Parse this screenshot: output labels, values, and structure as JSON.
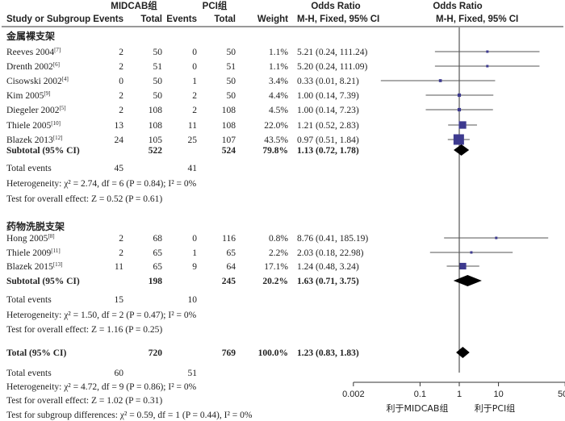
{
  "header": {
    "group1": "MIDCAB组",
    "group2": "PCI组",
    "or1": "Odds Ratio",
    "or2": "Odds Ratio",
    "study": "Study or Subgroup",
    "events1": "Events",
    "total1": "Total",
    "events2": "Events",
    "total2": "Total",
    "weight": "Weight",
    "method1": "M-H, Fixed, 95% CI",
    "method2": "M-H, Fixed, 95% CI"
  },
  "chart_data": {
    "type": "forest",
    "x_scale": "log",
    "xlim": [
      0.002,
      500
    ],
    "x_ticks": [
      "0.002",
      "0.1",
      "1",
      "10",
      "500"
    ],
    "x_tick_values": [
      0.002,
      0.1,
      1,
      10,
      500
    ],
    "favours_left": "利于MIDCAB组",
    "favours_right": "利于PCI组",
    "subgroups": [
      {
        "name": "金属裸支架",
        "studies": [
          {
            "study": "Reeves 2004",
            "ref": "[7]",
            "e1": "2",
            "t1": "50",
            "e2": "0",
            "t2": "50",
            "weight": "1.1%",
            "ci_text": "5.21 (0.24, 111.24)",
            "or": 5.21,
            "lo": 0.24,
            "hi": 111.24,
            "w": 1.1
          },
          {
            "study": "Drenth 2002",
            "ref": "[6]",
            "e1": "2",
            "t1": "51",
            "e2": "0",
            "t2": "51",
            "weight": "1.1%",
            "ci_text": "5.20 (0.24, 111.09)",
            "or": 5.2,
            "lo": 0.24,
            "hi": 111.09,
            "w": 1.1
          },
          {
            "study": "Cisowski 2002",
            "ref": "[4]",
            "e1": "0",
            "t1": "50",
            "e2": "1",
            "t2": "50",
            "weight": "3.4%",
            "ci_text": "0.33 (0.01, 8.21)",
            "or": 0.33,
            "lo": 0.01,
            "hi": 8.21,
            "w": 3.4
          },
          {
            "study": "Kim 2005",
            "ref": "[9]",
            "e1": "2",
            "t1": "50",
            "e2": "2",
            "t2": "50",
            "weight": "4.4%",
            "ci_text": "1.00 (0.14, 7.39)",
            "or": 1.0,
            "lo": 0.14,
            "hi": 7.39,
            "w": 4.4
          },
          {
            "study": "Diegeler 2002",
            "ref": "[5]",
            "e1": "2",
            "t1": "108",
            "e2": "2",
            "t2": "108",
            "weight": "4.5%",
            "ci_text": "1.00 (0.14, 7.23)",
            "or": 1.0,
            "lo": 0.14,
            "hi": 7.23,
            "w": 4.5
          },
          {
            "study": "Thiele 2005",
            "ref": "[10]",
            "e1": "13",
            "t1": "108",
            "e2": "11",
            "t2": "108",
            "weight": "22.0%",
            "ci_text": "1.21 (0.52, 2.83)",
            "or": 1.21,
            "lo": 0.52,
            "hi": 2.83,
            "w": 22.0
          },
          {
            "study": "Blazek 2013",
            "ref": "[12]",
            "e1": "24",
            "t1": "105",
            "e2": "25",
            "t2": "107",
            "weight": "43.5%",
            "ci_text": "0.97 (0.51, 1.84)",
            "or": 0.97,
            "lo": 0.51,
            "hi": 1.84,
            "w": 43.5
          }
        ],
        "subtotal": {
          "label": "Subtotal (95% CI)",
          "t1": "522",
          "t2": "524",
          "weight": "79.8%",
          "ci_text": "1.13 (0.72, 1.78)",
          "or": 1.13,
          "lo": 0.72,
          "hi": 1.78
        },
        "total_events": {
          "label": "Total events",
          "e1": "45",
          "e2": "41"
        },
        "heterogeneity": "Heterogeneity: χ² = 2.74, df = 6 (P = 0.84); I² = 0%",
        "overall": "Test for overall effect: Z = 0.52 (P = 0.61)"
      },
      {
        "name": "药物洗脱支架",
        "studies": [
          {
            "study": "Hong 2005",
            "ref": "[8]",
            "e1": "2",
            "t1": "68",
            "e2": "0",
            "t2": "116",
            "weight": "0.8%",
            "ci_text": "8.76 (0.41, 185.19)",
            "or": 8.76,
            "lo": 0.41,
            "hi": 185.19,
            "w": 0.8
          },
          {
            "study": "Thiele 2009",
            "ref": "[11]",
            "e1": "2",
            "t1": "65",
            "e2": "1",
            "t2": "65",
            "weight": "2.2%",
            "ci_text": "2.03 (0.18, 22.98)",
            "or": 2.03,
            "lo": 0.18,
            "hi": 22.98,
            "w": 2.2
          },
          {
            "study": "Blazek 2015",
            "ref": "[13]",
            "e1": "11",
            "t1": "65",
            "e2": "9",
            "t2": "64",
            "weight": "17.1%",
            "ci_text": "1.24 (0.48, 3.24)",
            "or": 1.24,
            "lo": 0.48,
            "hi": 3.24,
            "w": 17.1
          }
        ],
        "subtotal": {
          "label": "Subtotal (95% CI)",
          "t1": "198",
          "t2": "245",
          "weight": "20.2%",
          "ci_text": "1.63 (0.71, 3.75)",
          "or": 1.63,
          "lo": 0.71,
          "hi": 3.75
        },
        "total_events": {
          "label": "Total events",
          "e1": "15",
          "e2": "10"
        },
        "heterogeneity": "Heterogeneity: χ² = 1.50, df = 2 (P = 0.47); I² = 0%",
        "overall": "Test for overall effect: Z = 1.16 (P = 0.25)"
      }
    ],
    "total": {
      "label": "Total (95% CI)",
      "t1": "720",
      "t2": "769",
      "weight": "100.0%",
      "ci_text": "1.23 (0.83, 1.83)",
      "or": 1.23,
      "lo": 0.83,
      "hi": 1.83
    },
    "total_events": {
      "label": "Total events",
      "e1": "60",
      "e2": "51"
    },
    "heterogeneity": "Heterogeneity: χ² = 4.72, df = 9 (P = 0.86); I² = 0%",
    "overall": "Test for overall effect: Z = 1.02 (P = 0.31)",
    "subgroup_diff": "Test for subgroup differences: χ² = 0.59, df = 1 (P = 0.44), I² = 0%",
    "colors": {
      "square": "#3d3a8f",
      "diamond": "#000000",
      "line": "#555555"
    }
  }
}
